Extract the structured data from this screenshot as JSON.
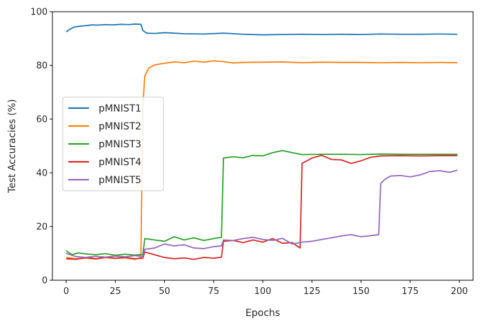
{
  "chart_data": {
    "type": "line",
    "title": "",
    "xlabel": "Epochs",
    "ylabel": "Test Accuracies (%)",
    "xlim": [
      -7,
      207
    ],
    "ylim": [
      0,
      100
    ],
    "xticks": [
      0,
      25,
      50,
      75,
      100,
      125,
      150,
      175,
      200
    ],
    "yticks": [
      0,
      20,
      40,
      60,
      80,
      100
    ],
    "grid": false,
    "legend_position": "center-left",
    "series": [
      {
        "name": "pMNIST1",
        "color": "#1f77b4",
        "points": [
          [
            0,
            92.5
          ],
          [
            2,
            93.5
          ],
          [
            4,
            94.3
          ],
          [
            7,
            94.6
          ],
          [
            10,
            94.8
          ],
          [
            13,
            95.1
          ],
          [
            16,
            95.0
          ],
          [
            20,
            95.2
          ],
          [
            24,
            95.1
          ],
          [
            28,
            95.3
          ],
          [
            32,
            95.2
          ],
          [
            35,
            95.4
          ],
          [
            38,
            95.3
          ],
          [
            39,
            93.0
          ],
          [
            41,
            92.0
          ],
          [
            45,
            91.9
          ],
          [
            50,
            92.2
          ],
          [
            60,
            91.8
          ],
          [
            70,
            91.7
          ],
          [
            80,
            92.0
          ],
          [
            90,
            91.6
          ],
          [
            100,
            91.4
          ],
          [
            110,
            91.5
          ],
          [
            120,
            91.6
          ],
          [
            130,
            91.5
          ],
          [
            140,
            91.6
          ],
          [
            150,
            91.5
          ],
          [
            160,
            91.7
          ],
          [
            170,
            91.6
          ],
          [
            180,
            91.6
          ],
          [
            190,
            91.7
          ],
          [
            199,
            91.6
          ]
        ]
      },
      {
        "name": "pMNIST2",
        "color": "#ff7f0e",
        "points": [
          [
            0,
            8.5
          ],
          [
            5,
            8.0
          ],
          [
            10,
            8.2
          ],
          [
            15,
            7.9
          ],
          [
            20,
            8.4
          ],
          [
            25,
            8.1
          ],
          [
            30,
            8.3
          ],
          [
            35,
            7.8
          ],
          [
            38,
            8.5
          ],
          [
            39,
            65.0
          ],
          [
            40,
            76.0
          ],
          [
            42,
            79.0
          ],
          [
            45,
            80.2
          ],
          [
            50,
            80.8
          ],
          [
            55,
            81.3
          ],
          [
            60,
            81.0
          ],
          [
            65,
            81.6
          ],
          [
            70,
            81.2
          ],
          [
            75,
            81.7
          ],
          [
            80,
            81.4
          ],
          [
            85,
            80.9
          ],
          [
            90,
            81.1
          ],
          [
            100,
            81.2
          ],
          [
            110,
            81.3
          ],
          [
            120,
            81.0
          ],
          [
            130,
            81.2
          ],
          [
            140,
            81.1
          ],
          [
            150,
            81.1
          ],
          [
            160,
            81.0
          ],
          [
            170,
            81.1
          ],
          [
            180,
            81.0
          ],
          [
            190,
            81.1
          ],
          [
            199,
            81.0
          ]
        ]
      },
      {
        "name": "pMNIST3",
        "color": "#2ca02c",
        "points": [
          [
            0,
            11.0
          ],
          [
            3,
            9.5
          ],
          [
            6,
            10.2
          ],
          [
            10,
            9.8
          ],
          [
            15,
            9.5
          ],
          [
            20,
            9.9
          ],
          [
            25,
            9.3
          ],
          [
            30,
            9.7
          ],
          [
            35,
            9.4
          ],
          [
            39,
            9.6
          ],
          [
            40,
            15.5
          ],
          [
            45,
            15.0
          ],
          [
            50,
            14.5
          ],
          [
            55,
            16.2
          ],
          [
            60,
            15.0
          ],
          [
            65,
            15.8
          ],
          [
            70,
            14.8
          ],
          [
            75,
            15.5
          ],
          [
            79,
            16.0
          ],
          [
            80,
            45.5
          ],
          [
            85,
            46.0
          ],
          [
            90,
            45.6
          ],
          [
            95,
            46.5
          ],
          [
            100,
            46.3
          ],
          [
            105,
            47.5
          ],
          [
            110,
            48.3
          ],
          [
            115,
            47.5
          ],
          [
            120,
            46.8
          ],
          [
            130,
            46.9
          ],
          [
            140,
            46.9
          ],
          [
            150,
            46.8
          ],
          [
            160,
            47.0
          ],
          [
            170,
            46.9
          ],
          [
            180,
            46.9
          ],
          [
            190,
            46.9
          ],
          [
            199,
            46.9
          ]
        ]
      },
      {
        "name": "pMNIST4",
        "color": "#d62728",
        "points": [
          [
            0,
            8.0
          ],
          [
            5,
            7.8
          ],
          [
            10,
            8.5
          ],
          [
            15,
            8.0
          ],
          [
            20,
            8.6
          ],
          [
            25,
            8.2
          ],
          [
            30,
            8.5
          ],
          [
            35,
            8.0
          ],
          [
            39,
            8.2
          ],
          [
            40,
            10.5
          ],
          [
            45,
            9.5
          ],
          [
            50,
            8.5
          ],
          [
            55,
            8.0
          ],
          [
            60,
            8.3
          ],
          [
            65,
            7.8
          ],
          [
            70,
            8.5
          ],
          [
            75,
            8.2
          ],
          [
            79,
            8.6
          ],
          [
            80,
            14.5
          ],
          [
            85,
            14.8
          ],
          [
            90,
            14.0
          ],
          [
            95,
            15.0
          ],
          [
            100,
            14.2
          ],
          [
            105,
            15.5
          ],
          [
            110,
            13.8
          ],
          [
            115,
            14.0
          ],
          [
            119,
            12.0
          ],
          [
            120,
            43.5
          ],
          [
            125,
            45.5
          ],
          [
            130,
            46.5
          ],
          [
            135,
            45.0
          ],
          [
            140,
            44.8
          ],
          [
            145,
            43.5
          ],
          [
            150,
            44.5
          ],
          [
            155,
            45.8
          ],
          [
            160,
            46.3
          ],
          [
            170,
            46.4
          ],
          [
            180,
            46.3
          ],
          [
            190,
            46.4
          ],
          [
            199,
            46.4
          ]
        ]
      },
      {
        "name": "pMNIST5",
        "color": "#9467bd",
        "points": [
          [
            0,
            10.0
          ],
          [
            5,
            8.8
          ],
          [
            10,
            8.5
          ],
          [
            15,
            8.9
          ],
          [
            20,
            8.6
          ],
          [
            25,
            9.0
          ],
          [
            30,
            8.7
          ],
          [
            35,
            9.2
          ],
          [
            39,
            8.8
          ],
          [
            40,
            11.5
          ],
          [
            45,
            12.0
          ],
          [
            50,
            13.5
          ],
          [
            55,
            12.8
          ],
          [
            60,
            13.2
          ],
          [
            65,
            12.0
          ],
          [
            70,
            11.8
          ],
          [
            75,
            12.5
          ],
          [
            79,
            12.8
          ],
          [
            80,
            15.0
          ],
          [
            85,
            14.8
          ],
          [
            90,
            15.5
          ],
          [
            95,
            16.0
          ],
          [
            100,
            15.2
          ],
          [
            105,
            14.8
          ],
          [
            110,
            15.6
          ],
          [
            115,
            13.5
          ],
          [
            120,
            14.2
          ],
          [
            125,
            14.5
          ],
          [
            130,
            15.2
          ],
          [
            135,
            15.8
          ],
          [
            140,
            16.5
          ],
          [
            145,
            17.0
          ],
          [
            150,
            16.2
          ],
          [
            155,
            16.6
          ],
          [
            159,
            17.0
          ],
          [
            160,
            36.0
          ],
          [
            162,
            37.5
          ],
          [
            165,
            38.8
          ],
          [
            170,
            39.0
          ],
          [
            175,
            38.5
          ],
          [
            180,
            39.2
          ],
          [
            185,
            40.5
          ],
          [
            190,
            40.8
          ],
          [
            195,
            40.2
          ],
          [
            199,
            41.0
          ]
        ]
      }
    ]
  }
}
